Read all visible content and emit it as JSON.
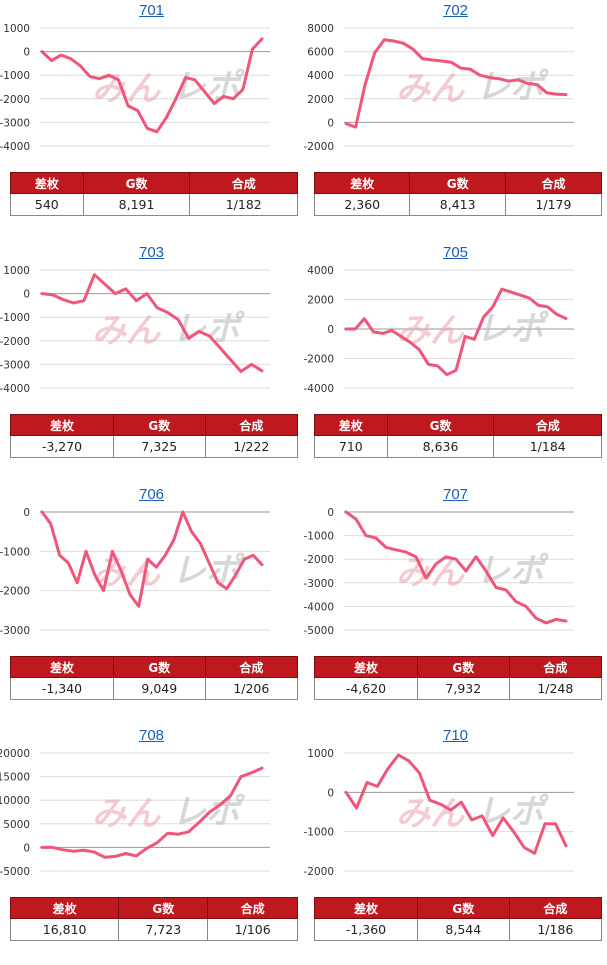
{
  "colors": {
    "line": "#f0557a",
    "header_bg": "#c0181f",
    "title_link": "#1a5fb4",
    "grid": "#dddddd"
  },
  "headers": {
    "diff": "差枚",
    "games": "G数",
    "combined": "合成"
  },
  "watermark": {
    "left": "みん",
    "right": "レポ"
  },
  "machines": [
    {
      "title": "701",
      "stats": {
        "diff": "540",
        "games": "8,191",
        "combined": "1/182"
      }
    },
    {
      "title": "702",
      "stats": {
        "diff": "2,360",
        "games": "8,413",
        "combined": "1/179"
      }
    },
    {
      "title": "703",
      "stats": {
        "diff": "-3,270",
        "games": "7,325",
        "combined": "1/222"
      }
    },
    {
      "title": "705",
      "stats": {
        "diff": "710",
        "games": "8,636",
        "combined": "1/184"
      }
    },
    {
      "title": "706",
      "stats": {
        "diff": "-1,340",
        "games": "9,049",
        "combined": "1/206"
      }
    },
    {
      "title": "707",
      "stats": {
        "diff": "-4,620",
        "games": "7,932",
        "combined": "1/248"
      }
    },
    {
      "title": "708",
      "stats": {
        "diff": "16,810",
        "games": "7,723",
        "combined": "1/106"
      }
    },
    {
      "title": "710",
      "stats": {
        "diff": "-1,360",
        "games": "8,544",
        "combined": "1/186"
      }
    }
  ],
  "chart_data": [
    {
      "type": "line",
      "title": "701",
      "yticks": [
        1000,
        0,
        -1000,
        -2000,
        -3000,
        -4000
      ],
      "ylim": [
        -4000,
        1000
      ],
      "values": [
        0,
        -380,
        -150,
        -300,
        -600,
        -1050,
        -1150,
        -1000,
        -1200,
        -2300,
        -2500,
        -3250,
        -3400,
        -2800,
        -2000,
        -1100,
        -1200,
        -1700,
        -2200,
        -1900,
        -2000,
        -1600,
        100,
        540
      ]
    },
    {
      "type": "line",
      "title": "702",
      "yticks": [
        8000,
        6000,
        4000,
        2000,
        0,
        -2000
      ],
      "ylim": [
        -2000,
        8000
      ],
      "values": [
        -100,
        -400,
        3200,
        5900,
        7000,
        6900,
        6700,
        6200,
        5400,
        5300,
        5200,
        5100,
        4600,
        4500,
        4000,
        3800,
        3700,
        3500,
        3600,
        3300,
        3200,
        2500,
        2400,
        2360
      ]
    },
    {
      "type": "line",
      "title": "703",
      "yticks": [
        1000,
        0,
        -1000,
        -2000,
        -3000,
        -4000
      ],
      "ylim": [
        -4000,
        1000
      ],
      "values": [
        0,
        -50,
        -250,
        -400,
        -300,
        800,
        400,
        0,
        200,
        -300,
        0,
        -600,
        -800,
        -1100,
        -1900,
        -1600,
        -1800,
        -2300,
        -2800,
        -3300,
        -3000,
        -3270
      ]
    },
    {
      "type": "line",
      "title": "705",
      "yticks": [
        4000,
        2000,
        0,
        -2000,
        -4000
      ],
      "ylim": [
        -4000,
        4000
      ],
      "values": [
        0,
        0,
        700,
        -200,
        -300,
        -100,
        -500,
        -900,
        -1400,
        -2400,
        -2500,
        -3100,
        -2800,
        -500,
        -700,
        800,
        1500,
        2700,
        2500,
        2300,
        2100,
        1600,
        1500,
        1000,
        710
      ]
    },
    {
      "type": "line",
      "title": "706",
      "yticks": [
        0,
        -1000,
        -2000,
        -3000
      ],
      "ylim": [
        -3000,
        0
      ],
      "values": [
        0,
        -300,
        -1100,
        -1300,
        -1800,
        -1000,
        -1600,
        -2000,
        -1000,
        -1500,
        -2100,
        -2400,
        -1200,
        -1400,
        -1100,
        -700,
        0,
        -500,
        -800,
        -1300,
        -1800,
        -1950,
        -1600,
        -1200,
        -1100,
        -1340
      ]
    },
    {
      "type": "line",
      "title": "707",
      "yticks": [
        0,
        -1000,
        -2000,
        -3000,
        -4000,
        -5000
      ],
      "ylim": [
        -5000,
        0
      ],
      "values": [
        0,
        -300,
        -1000,
        -1100,
        -1500,
        -1600,
        -1700,
        -1900,
        -2800,
        -2200,
        -1900,
        -2000,
        -2500,
        -1900,
        -2500,
        -3200,
        -3300,
        -3800,
        -4000,
        -4500,
        -4700,
        -4550,
        -4620
      ]
    },
    {
      "type": "line",
      "title": "708",
      "yticks": [
        20000,
        15000,
        10000,
        5000,
        0,
        -5000
      ],
      "ylim": [
        -5000,
        20000
      ],
      "values": [
        0,
        0,
        -500,
        -800,
        -600,
        -1000,
        -2100,
        -1900,
        -1300,
        -1800,
        -200,
        1000,
        3000,
        2800,
        3300,
        5300,
        7500,
        9000,
        11000,
        15000,
        15800,
        16810
      ]
    },
    {
      "type": "line",
      "title": "710",
      "yticks": [
        1000,
        0,
        -1000,
        -2000
      ],
      "ylim": [
        -2000,
        1000
      ],
      "values": [
        0,
        -400,
        250,
        150,
        600,
        950,
        800,
        500,
        -200,
        -300,
        -450,
        -250,
        -700,
        -600,
        -1100,
        -650,
        -1000,
        -1400,
        -1550,
        -800,
        -800,
        -1360
      ]
    }
  ]
}
